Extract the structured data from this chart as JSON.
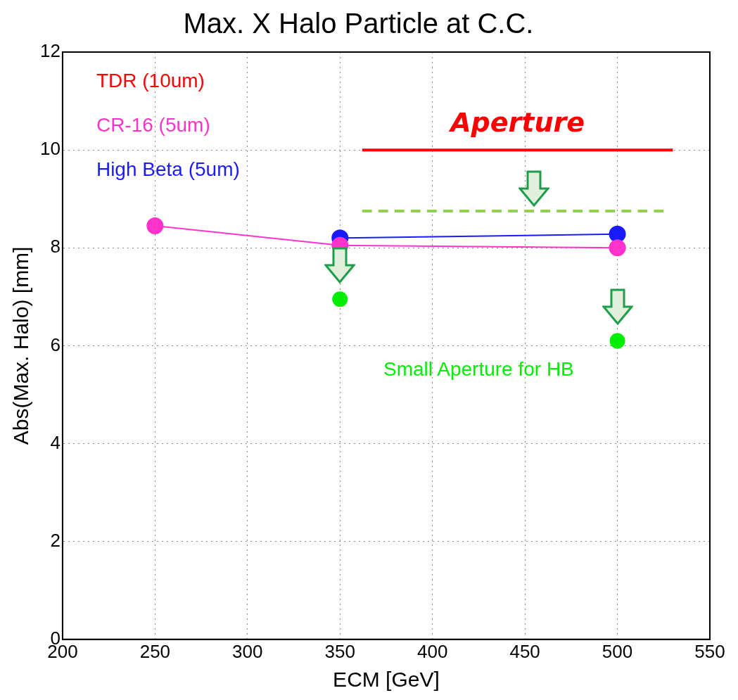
{
  "chart_data": {
    "type": "line",
    "title": "Max. X Halo Particle at C.C.",
    "xlabel": "ECM [GeV]",
    "ylabel": "Abs(Max. Halo) [mm]",
    "xlim": [
      200,
      550
    ],
    "xticks": [
      200,
      250,
      300,
      350,
      400,
      450,
      500,
      550
    ],
    "ylim": [
      0,
      12
    ],
    "yticks": [
      0,
      2,
      4,
      6,
      8,
      10,
      12
    ],
    "grid": true,
    "legend": "top left",
    "marker": "circle",
    "series": [
      {
        "name": "TDR (10um)",
        "color": "#ff0000"
      },
      {
        "name": "CR-16 (5um)",
        "color": "#ff33cc",
        "x": [
          250,
          350,
          500
        ],
        "values": [
          8.45,
          8.05,
          8.0
        ]
      },
      {
        "name": "High Beta (5um)",
        "color": "#1a1aff",
        "x": [
          350,
          500
        ],
        "values": [
          8.2,
          8.28
        ]
      },
      {
        "name": "Aperture",
        "color": "#ff0000",
        "type": "line",
        "marker": "none",
        "x": [
          362,
          530
        ],
        "values": [
          10,
          10
        ]
      },
      {
        "color": "#92d050",
        "type": "line",
        "marker": "none",
        "line_style": "dashed",
        "x": [
          362,
          525
        ],
        "values": [
          8.75,
          8.75
        ]
      },
      {
        "name": "Small Aperture for HB",
        "color": "#00ee00",
        "type": "scatter",
        "x": [
          350,
          500
        ],
        "values": [
          6.95,
          6.1
        ]
      }
    ]
  }
}
